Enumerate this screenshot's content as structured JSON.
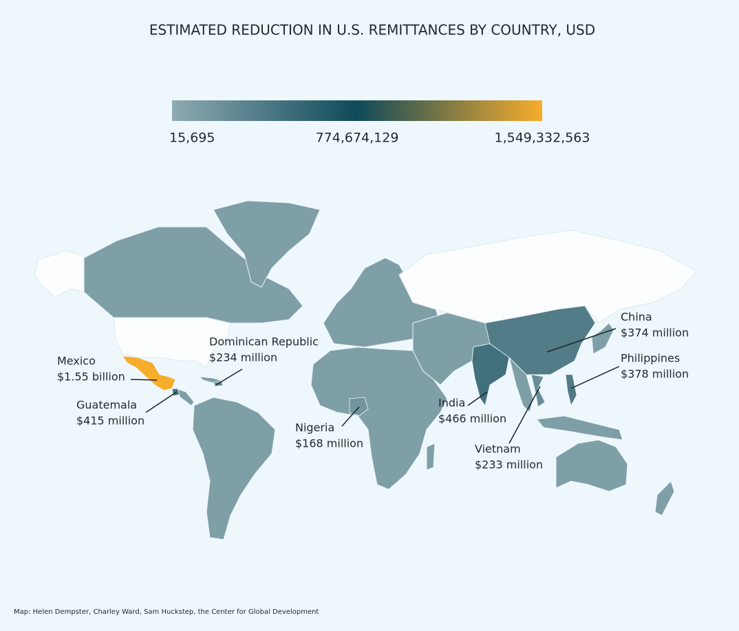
{
  "title": "ESTIMATED REDUCTION IN U.S. REMITTANCES BY COUNTRY, USD",
  "legend": {
    "colors": [
      "#8eaab2",
      "#0f4a5a",
      "#f6ad2c"
    ],
    "ticks": [
      {
        "value": 15695,
        "label": "15,695"
      },
      {
        "value": 774674129,
        "label": "774,674,129"
      },
      {
        "value": 1549332563,
        "label": "1,549,332,563"
      }
    ]
  },
  "countries": [
    {
      "name": "Mexico",
      "value": 1550000000,
      "label": "$1.55 billion"
    },
    {
      "name": "Guatemala",
      "value": 415000000,
      "label": "$415 million"
    },
    {
      "name": "Dominican Republic",
      "value": 234000000,
      "label": "$234 million"
    },
    {
      "name": "Nigeria",
      "value": 168000000,
      "label": "$168 million"
    },
    {
      "name": "India",
      "value": 466000000,
      "label": "$466 million"
    },
    {
      "name": "China",
      "value": 374000000,
      "label": "$374 million"
    },
    {
      "name": "Vietnam",
      "value": 233000000,
      "label": "$233 million"
    },
    {
      "name": "Philippines",
      "value": 378000000,
      "label": "$378 million"
    }
  ],
  "source": "Map: Helen Dempster, Charley Ward, Sam Huckstep, the Center for Global Development"
}
